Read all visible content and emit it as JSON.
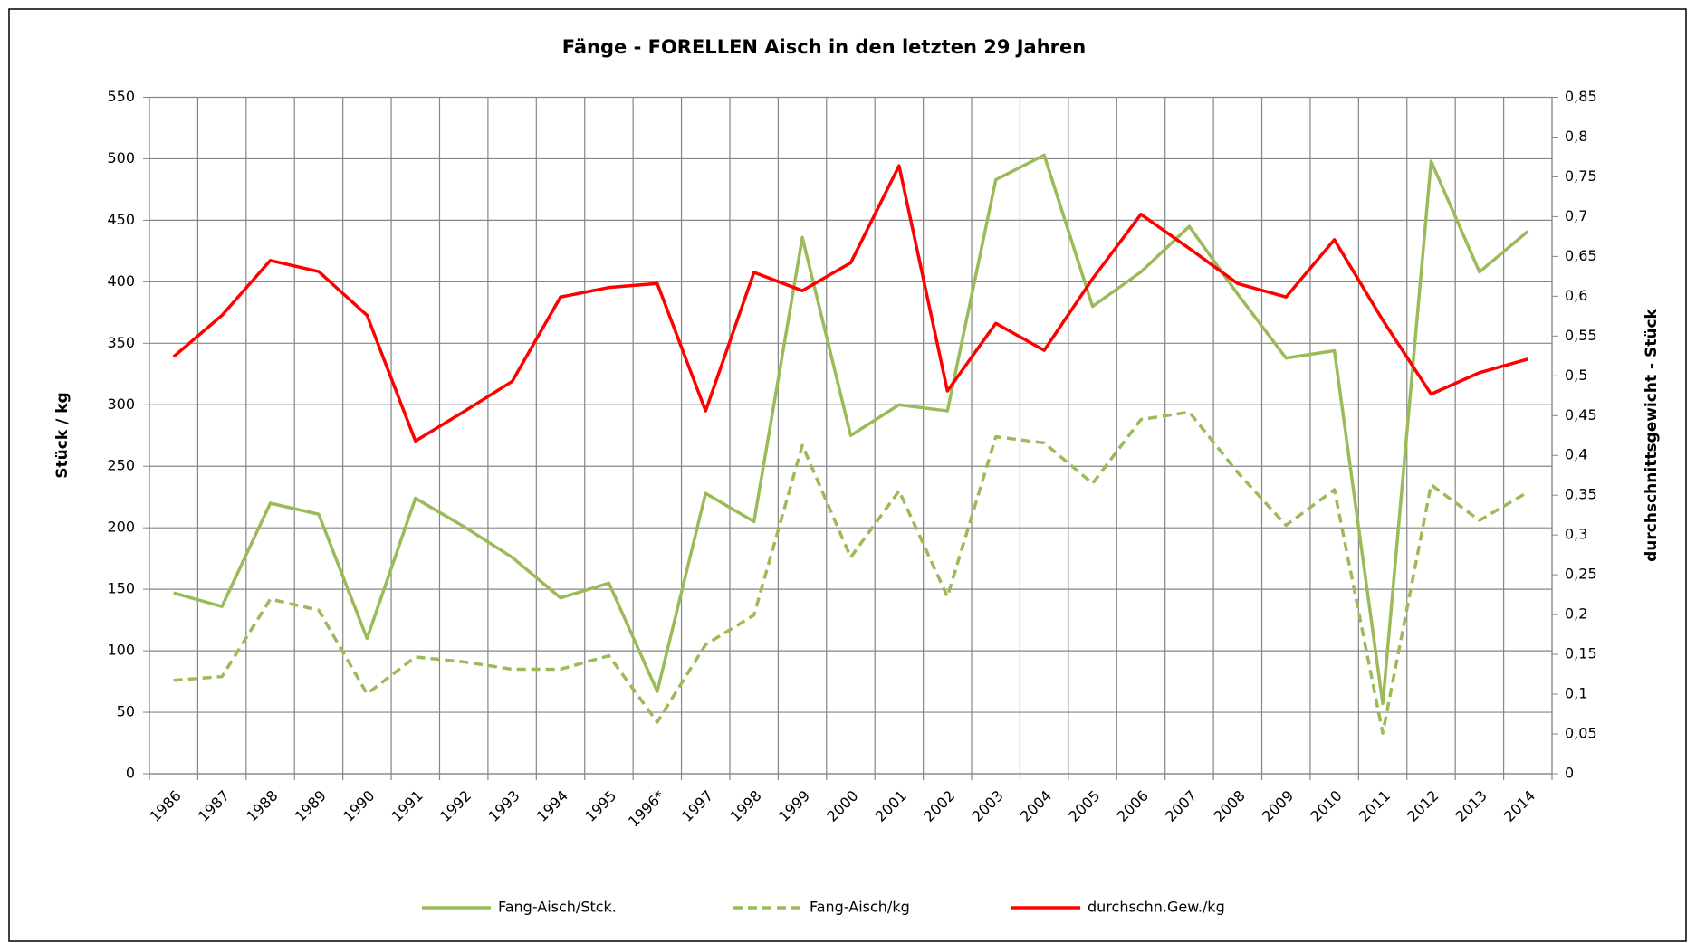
{
  "chart_data": {
    "type": "line",
    "title": "Fänge - FORELLEN Aisch in den letzten 29 Jahren",
    "y_label": "Stück / kg",
    "y2_label": "durchschnittsgewicht - Stück",
    "categories": [
      "1986",
      "1987",
      "1988",
      "1989",
      "1990",
      "1991",
      "1992",
      "1993",
      "1994",
      "1995",
      "1996*",
      "1997",
      "1998",
      "1999",
      "2000",
      "2001",
      "2002",
      "2003",
      "2004",
      "2005",
      "2006",
      "2007",
      "2008",
      "2009",
      "2010",
      "2011",
      "2012",
      "2013",
      "2014"
    ],
    "series": [
      {
        "name": "Fang-Aisch/Stck.",
        "color": "#9bbb59",
        "linestyle": "solid",
        "axis": "y",
        "values": [
          147,
          136,
          220,
          211,
          110,
          224,
          201,
          176,
          143,
          155,
          67,
          228,
          205,
          436,
          275,
          300,
          295,
          483,
          503,
          380,
          408,
          445,
          390,
          338,
          344,
          57,
          498,
          408,
          441
        ]
      },
      {
        "name": "Fang-Aisch/kg",
        "color": "#9bbb59",
        "linestyle": "dashed",
        "axis": "y",
        "values": [
          76,
          79,
          142,
          133,
          65,
          95,
          91,
          85,
          85,
          96,
          42,
          105,
          129,
          267,
          176,
          230,
          144,
          274,
          269,
          236,
          288,
          294,
          245,
          202,
          231,
          33,
          235,
          206,
          229
        ]
      },
      {
        "name": "durchschn.Gew./kg",
        "color": "#ff0000",
        "linestyle": "solid",
        "axis": "y2",
        "values": [
          0.524,
          0.576,
          0.645,
          0.631,
          0.576,
          0.418,
          0.455,
          0.493,
          0.599,
          0.611,
          0.616,
          0.456,
          0.63,
          0.607,
          0.642,
          0.764,
          0.481,
          0.566,
          0.532,
          0.622,
          0.703,
          0.66,
          0.616,
          0.599,
          0.671,
          0.57,
          0.477,
          0.504,
          0.521
        ]
      }
    ],
    "ylim": [
      0,
      550
    ],
    "yticks": [
      0,
      50,
      100,
      150,
      200,
      250,
      300,
      350,
      400,
      450,
      500,
      550
    ],
    "y2lim": [
      0,
      0.85
    ],
    "y2ticks": [
      0,
      {
        "value": 0.05,
        "label": "0,05"
      },
      {
        "value": 0.1,
        "label": "0,1"
      },
      {
        "value": 0.15,
        "label": "0,15"
      },
      {
        "value": 0.2,
        "label": "0,2"
      },
      {
        "value": 0.25,
        "label": "0,25"
      },
      {
        "value": 0.3,
        "label": "0,3"
      },
      {
        "value": 0.35,
        "label": "0,35"
      },
      {
        "value": 0.4,
        "label": "0,4"
      },
      {
        "value": 0.45,
        "label": "0,45"
      },
      {
        "value": 0.5,
        "label": "0,5"
      },
      {
        "value": 0.55,
        "label": "0,55"
      },
      {
        "value": 0.6,
        "label": "0,6"
      },
      {
        "value": 0.65,
        "label": "0,65"
      },
      {
        "value": 0.7,
        "label": "0,7"
      },
      {
        "value": 0.75,
        "label": "0,75"
      },
      {
        "value": 0.8,
        "label": "0,8"
      },
      {
        "value": 0.85,
        "label": "0,85"
      }
    ],
    "grid": true,
    "legend": "bottom"
  }
}
